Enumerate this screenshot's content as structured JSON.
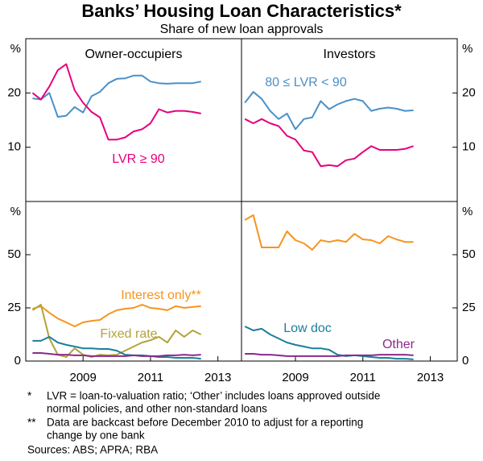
{
  "title": "Banks’ Housing Loan Characteristics*",
  "subtitle": "Share of new loan approvals",
  "notes": [
    {
      "marker": "*",
      "lines": [
        "LVR = loan-to-valuation ratio; ‘Other’ includes loans approved outside",
        "normal policies, and other non-standard loans"
      ]
    },
    {
      "marker": "**",
      "lines": [
        "Data are backcast before December 2010 to adjust for a reporting",
        "change by one bank"
      ]
    }
  ],
  "sources": "Sources: ABS; APRA; RBA",
  "chart_data": [
    {
      "type": "line",
      "title": "Owner-occupiers",
      "ylabel": "%",
      "xlim": [
        2007.3,
        2013.7
      ],
      "ylim": [
        0,
        30
      ],
      "yticks": [
        10,
        20
      ],
      "x": [
        2007.5,
        2007.75,
        2008,
        2008.25,
        2008.5,
        2008.75,
        2009,
        2009.25,
        2009.5,
        2009.75,
        2010,
        2010.25,
        2010.5,
        2010.75,
        2011,
        2011.25,
        2011.5,
        2011.75,
        2012,
        2012.25,
        2012.5
      ],
      "series": [
        {
          "color": "#4a90c8",
          "values": [
            19,
            18.8,
            20,
            15.6,
            15.8,
            17.4,
            16.4,
            19.4,
            20.2,
            21.8,
            22.6,
            22.7,
            23.2,
            23.2,
            22.1,
            21.8,
            21.7,
            21.8,
            21.8,
            21.8,
            22.1
          ]
        },
        {
          "name": "LVR ≥ 90",
          "color": "#e6007e",
          "values": [
            20,
            18.8,
            21.2,
            24.2,
            25.3,
            20.5,
            18.2,
            16.5,
            15.5,
            11.4,
            11.4,
            11.8,
            12.9,
            13.3,
            14.4,
            17,
            16.4,
            16.7,
            16.7,
            16.5,
            16.2
          ]
        }
      ]
    },
    {
      "type": "line",
      "title": "Investors",
      "ylabel": "%",
      "xlim": [
        2007.4,
        2013.8
      ],
      "ylim": [
        0,
        30
      ],
      "yticks": [
        10,
        20
      ],
      "x": [
        2007.5,
        2007.75,
        2008,
        2008.25,
        2008.5,
        2008.75,
        2009,
        2009.25,
        2009.5,
        2009.75,
        2010,
        2010.25,
        2010.5,
        2010.75,
        2011,
        2011.25,
        2011.5,
        2011.75,
        2012,
        2012.25,
        2012.5
      ],
      "series": [
        {
          "name": "80 ≤ LVR < 90",
          "color": "#4a90c8",
          "values": [
            18.2,
            20.2,
            18.9,
            16.7,
            15.2,
            16.2,
            13.3,
            15.2,
            15.5,
            18.5,
            17,
            17.9,
            18.5,
            18.9,
            18.5,
            16.7,
            17.1,
            17.3,
            17.1,
            16.7,
            16.8
          ]
        },
        {
          "color": "#e6007e",
          "values": [
            15.2,
            14.4,
            15.2,
            14.4,
            13.9,
            12.1,
            11.4,
            9.4,
            9.1,
            6.5,
            6.7,
            6.5,
            7.6,
            7.9,
            9.1,
            10.2,
            9.5,
            9.5,
            9.5,
            9.7,
            10.2
          ]
        }
      ]
    },
    {
      "type": "line",
      "ylabel": "%",
      "xlim": [
        2007.3,
        2013.7
      ],
      "ylim": [
        0,
        75
      ],
      "yticks": [
        0,
        25,
        50
      ],
      "xticks": [
        2009,
        2011,
        2013
      ],
      "x": [
        2007.5,
        2007.75,
        2008,
        2008.25,
        2008.5,
        2008.75,
        2009,
        2009.25,
        2009.5,
        2009.75,
        2010,
        2010.25,
        2010.5,
        2010.75,
        2011,
        2011.25,
        2011.5,
        2011.75,
        2012,
        2012.25,
        2012.5
      ],
      "series": [
        {
          "name": "Interest only**",
          "color": "#f7941d",
          "values": [
            24.6,
            25.8,
            22.7,
            20,
            18.2,
            16.3,
            18.2,
            18.9,
            19.3,
            22,
            23.9,
            24.6,
            25,
            26.5,
            25,
            24.6,
            23.9,
            25.8,
            25,
            25.4,
            25.8
          ]
        },
        {
          "name": "Fixed rate",
          "color": "#b3a33a",
          "values": [
            23.9,
            26.5,
            10.6,
            3,
            1.9,
            6,
            3,
            1.9,
            3,
            2.7,
            3,
            4.9,
            6.8,
            8.7,
            9.8,
            11.4,
            8.7,
            14.4,
            11.4,
            14.4,
            12.5
          ]
        },
        {
          "color": "#1a7f9a",
          "values": [
            9.5,
            9.5,
            11.4,
            8.7,
            7.6,
            6.8,
            6,
            6,
            5.7,
            5.7,
            4.9,
            3,
            2.7,
            2.7,
            2.3,
            1.9,
            1.9,
            1.5,
            1.5,
            1.5,
            1.1
          ]
        },
        {
          "color": "#8b2a8b",
          "values": [
            3.8,
            3.8,
            3.4,
            3,
            3,
            2.7,
            2.7,
            2.3,
            2.3,
            2.3,
            2.3,
            2.3,
            2.7,
            2.3,
            2.3,
            2.3,
            2.7,
            2.7,
            3,
            2.7,
            3
          ]
        }
      ]
    },
    {
      "type": "line",
      "ylabel": "%",
      "xlim": [
        2007.4,
        2013.8
      ],
      "ylim": [
        0,
        75
      ],
      "yticks": [
        0,
        25,
        50
      ],
      "xticks": [
        2009,
        2011,
        2013
      ],
      "x": [
        2007.5,
        2007.75,
        2008,
        2008.25,
        2008.5,
        2008.75,
        2009,
        2009.25,
        2009.5,
        2009.75,
        2010,
        2010.25,
        2010.5,
        2010.75,
        2011,
        2011.25,
        2011.5,
        2011.75,
        2012,
        2012.25,
        2012.5
      ],
      "series": [
        {
          "color": "#f7941d",
          "values": [
            66.3,
            68.6,
            53.4,
            53.4,
            53.4,
            61,
            56.8,
            55.3,
            52.3,
            56.8,
            56,
            56.8,
            56,
            59.8,
            57.2,
            56.8,
            55.3,
            58.7,
            57.2,
            56,
            56
          ]
        },
        {
          "name": "Low doc",
          "color": "#1a7f9a",
          "values": [
            16.3,
            14.4,
            15.2,
            12.5,
            10.6,
            8.7,
            7.6,
            6.8,
            6,
            6,
            5.3,
            3,
            2.3,
            2.7,
            2.3,
            1.9,
            1.5,
            1.5,
            1.1,
            1.1,
            0.8
          ]
        },
        {
          "name": "Other",
          "color": "#8b2a8b",
          "values": [
            3.4,
            3.4,
            3,
            3,
            2.7,
            2.3,
            2.3,
            2.3,
            2.3,
            2.3,
            2.3,
            2.3,
            2.7,
            2.7,
            2.7,
            2.7,
            3,
            3,
            3,
            3,
            2.7
          ]
        }
      ]
    }
  ]
}
